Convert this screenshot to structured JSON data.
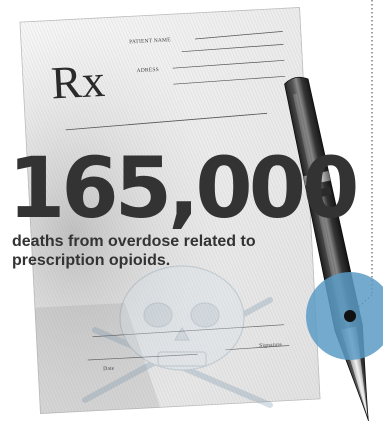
{
  "prescription": {
    "rx_symbol": "Rx",
    "patient_name_label": "PATIENT NAME",
    "address_label": "ADRESS",
    "date_label": "Date",
    "signature_label": "Signature"
  },
  "headline": {
    "number": "165,000",
    "caption_line1": "deaths from overdose related to",
    "caption_line2": "prescription opioids."
  },
  "colors": {
    "headline_text": "#333333",
    "marker_circle": "#5a9bc4",
    "marker_dot": "#111111"
  },
  "icons": {
    "pen": "pen-icon",
    "skull": "skull-crossbones-watermark",
    "marker": "location-marker-icon"
  }
}
